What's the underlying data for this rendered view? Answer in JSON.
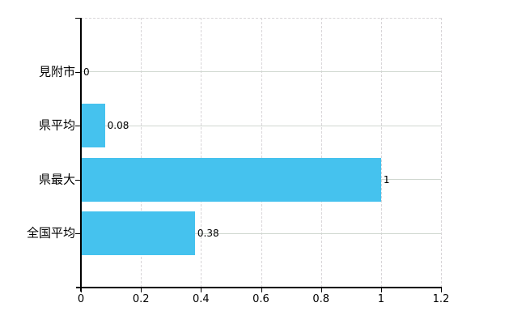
{
  "chart_data": {
    "type": "bar",
    "orientation": "horizontal",
    "title": "",
    "xlabel": "",
    "ylabel": "",
    "categories": [
      "見附市",
      "県平均",
      "県最大",
      "全国平均"
    ],
    "values": [
      0,
      0.08,
      1,
      0.38
    ],
    "value_labels": [
      "0",
      "0.08",
      "1",
      "0.38"
    ],
    "xlim": [
      0,
      1.2
    ],
    "xticks": [
      0,
      0.2,
      0.4,
      0.6,
      0.8,
      1,
      1.2
    ],
    "xtick_labels": [
      "0",
      "0.2",
      "0.4",
      "0.6",
      "0.8",
      "1",
      "1.2"
    ],
    "grid": true,
    "legend": false,
    "colors": {
      "bar": "#45c2ee",
      "axis": "#000000",
      "text": "#000000",
      "grid_horizontal": "#d0d7d0",
      "grid_vertical": "#d8d5d8",
      "background": "#ffffff"
    }
  }
}
